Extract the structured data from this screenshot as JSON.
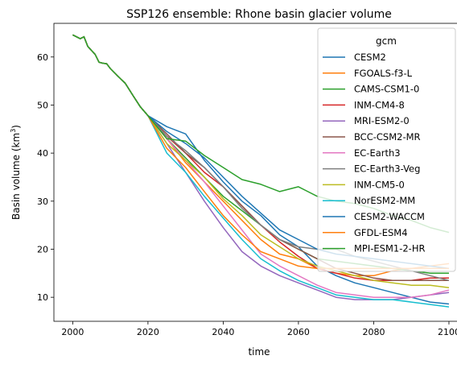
{
  "chart_data": {
    "type": "line",
    "title": "SSP126 ensemble: Rhone basin glacier volume",
    "xlabel": "time",
    "ylabel_main": "Basin volume (km",
    "ylabel_sup": "3",
    "ylabel_close": ")",
    "xlim": [
      1995,
      2103
    ],
    "ylim": [
      5,
      67
    ],
    "xticks": [
      "2000",
      "2020",
      "2040",
      "2060",
      "2080",
      "2100"
    ],
    "xtick_values": [
      2000,
      2020,
      2040,
      2060,
      2080,
      2100
    ],
    "yticks": [
      "10",
      "20",
      "30",
      "40",
      "50",
      "60"
    ],
    "ytick_values": [
      10,
      20,
      30,
      40,
      50,
      60
    ],
    "grid": false,
    "legend_title": "gcm",
    "legend_position": "upper-right",
    "common_history": {
      "x": [
        2000,
        2002,
        2003,
        2004,
        2006,
        2007,
        2008,
        2009,
        2010,
        2012,
        2014,
        2016,
        2018,
        2020
      ],
      "y": [
        64.6,
        63.8,
        64.2,
        62.2,
        60.5,
        58.9,
        58.7,
        58.6,
        57.6,
        56.0,
        54.5,
        52.0,
        49.6,
        47.8
      ]
    },
    "series": [
      {
        "name": "CESM2",
        "color": "#1f77b4",
        "x": [
          2020,
          2025,
          2030,
          2035,
          2040,
          2045,
          2050,
          2055,
          2060,
          2065,
          2070,
          2075,
          2080,
          2085,
          2090,
          2095,
          2100
        ],
        "y": [
          47.8,
          45.5,
          44.0,
          38.5,
          34.0,
          30.0,
          27.0,
          23.0,
          20.5,
          16.5,
          14.5,
          13.0,
          12.0,
          11.0,
          10.0,
          9.0,
          8.6
        ]
      },
      {
        "name": "FGOALS-f3-L",
        "color": "#ff7f0e",
        "x": [
          2020,
          2025,
          2030,
          2035,
          2040,
          2045,
          2050,
          2055,
          2060,
          2065,
          2070,
          2075,
          2080,
          2085,
          2090,
          2095,
          2100
        ],
        "y": [
          47.8,
          43.0,
          38.0,
          34.0,
          30.0,
          26.0,
          22.0,
          19.0,
          18.0,
          16.0,
          15.0,
          14.5,
          14.5,
          15.5,
          16.0,
          16.5,
          17.0
        ]
      },
      {
        "name": "CAMS-CSM1-0",
        "color": "#2ca02c",
        "x": [
          2020,
          2025,
          2030,
          2035,
          2040,
          2045,
          2050,
          2055,
          2060,
          2065,
          2070,
          2075,
          2080,
          2085,
          2090,
          2095,
          2100
        ],
        "y": [
          47.8,
          43.0,
          39.0,
          35.0,
          31.0,
          28.0,
          25.0,
          22.0,
          20.0,
          18.0,
          17.5,
          17.0,
          16.5,
          16.0,
          15.5,
          15.0,
          15.0
        ]
      },
      {
        "name": "INM-CM4-8",
        "color": "#d62728",
        "x": [
          2020,
          2025,
          2030,
          2035,
          2040,
          2045,
          2050,
          2055,
          2060,
          2065,
          2070,
          2075,
          2080,
          2085,
          2090,
          2095,
          2100
        ],
        "y": [
          47.8,
          43.5,
          40.0,
          36.0,
          33.0,
          29.0,
          25.0,
          21.5,
          18.5,
          16.0,
          15.0,
          14.0,
          13.5,
          13.5,
          13.5,
          14.0,
          14.0
        ]
      },
      {
        "name": "MRI-ESM2-0",
        "color": "#9467bd",
        "x": [
          2020,
          2025,
          2030,
          2035,
          2040,
          2045,
          2050,
          2055,
          2060,
          2065,
          2070,
          2075,
          2080,
          2085,
          2090,
          2095,
          2100
        ],
        "y": [
          47.8,
          42.0,
          36.0,
          30.0,
          24.5,
          19.5,
          16.5,
          14.5,
          13.0,
          11.5,
          10.0,
          9.5,
          9.5,
          9.5,
          10.0,
          10.5,
          11.0
        ]
      },
      {
        "name": "BCC-CSM2-MR",
        "color": "#8c564b",
        "x": [
          2020,
          2025,
          2030,
          2035,
          2040,
          2045,
          2050,
          2055,
          2060,
          2065,
          2070,
          2075,
          2080,
          2085,
          2090,
          2095,
          2100
        ],
        "y": [
          47.8,
          44.0,
          40.0,
          37.0,
          33.0,
          29.0,
          25.0,
          22.0,
          20.0,
          18.0,
          16.0,
          15.0,
          14.0,
          13.5,
          13.5,
          13.5,
          13.5
        ]
      },
      {
        "name": "EC-Earth3",
        "color": "#e377c2",
        "x": [
          2020,
          2025,
          2030,
          2035,
          2040,
          2045,
          2050,
          2055,
          2060,
          2065,
          2070,
          2075,
          2080,
          2085,
          2090,
          2095,
          2100
        ],
        "y": [
          47.8,
          43.0,
          38.5,
          34.0,
          29.0,
          24.0,
          19.0,
          16.5,
          14.5,
          12.5,
          11.0,
          10.5,
          10.0,
          10.0,
          10.0,
          10.5,
          11.5
        ]
      },
      {
        "name": "EC-Earth3-Veg",
        "color": "#7f7f7f",
        "x": [
          2020,
          2025,
          2030,
          2035,
          2040,
          2045,
          2050,
          2055,
          2060,
          2065,
          2070,
          2075,
          2080,
          2085,
          2090,
          2095,
          2100
        ],
        "y": [
          47.8,
          43.5,
          40.5,
          37.0,
          33.0,
          28.5,
          25.0,
          22.0,
          20.5,
          20.0,
          20.0,
          18.5,
          17.5,
          16.5,
          15.5,
          14.5,
          13.5
        ]
      },
      {
        "name": "INM-CM5-0",
        "color": "#bcbd22",
        "x": [
          2020,
          2025,
          2030,
          2035,
          2040,
          2045,
          2050,
          2055,
          2060,
          2065,
          2070,
          2075,
          2080,
          2085,
          2090,
          2095,
          2100
        ],
        "y": [
          47.8,
          42.0,
          38.5,
          35.0,
          30.5,
          27.0,
          23.0,
          20.5,
          18.0,
          16.5,
          15.5,
          14.5,
          13.5,
          13.0,
          12.5,
          12.5,
          12.0
        ]
      },
      {
        "name": "NorESM2-MM",
        "color": "#17becf",
        "x": [
          2020,
          2025,
          2030,
          2035,
          2040,
          2045,
          2050,
          2055,
          2060,
          2065,
          2070,
          2075,
          2080,
          2085,
          2090,
          2095,
          2100
        ],
        "y": [
          47.8,
          40.0,
          36.0,
          31.0,
          26.5,
          22.0,
          18.0,
          15.5,
          13.5,
          12.0,
          10.5,
          10.0,
          9.5,
          9.5,
          9.0,
          8.5,
          8.0
        ]
      },
      {
        "name": "CESM2-WACCM",
        "color": "#1f77b4",
        "x": [
          2020,
          2025,
          2030,
          2035,
          2040,
          2045,
          2050,
          2055,
          2060,
          2065,
          2070,
          2075,
          2080,
          2085,
          2090,
          2095,
          2100
        ],
        "y": [
          47.8,
          44.5,
          42.0,
          39.0,
          35.0,
          31.0,
          27.5,
          24.0,
          22.0,
          20.0,
          19.0,
          18.5,
          18.0,
          17.5,
          17.0,
          16.5,
          16.0
        ]
      },
      {
        "name": "GFDL-ESM4",
        "color": "#ff7f0e",
        "x": [
          2020,
          2025,
          2030,
          2035,
          2040,
          2045,
          2050,
          2055,
          2060,
          2065,
          2070,
          2075,
          2080,
          2085,
          2090,
          2095,
          2100
        ],
        "y": [
          47.8,
          41.0,
          37.0,
          32.0,
          27.0,
          23.0,
          19.5,
          18.0,
          16.5,
          16.0,
          16.0,
          16.0,
          16.0,
          16.0,
          16.0,
          16.0,
          16.0
        ]
      },
      {
        "name": "MPI-ESM1-2-HR",
        "color": "#2ca02c",
        "x": [
          2020,
          2025,
          2030,
          2035,
          2040,
          2045,
          2050,
          2055,
          2060,
          2065,
          2070,
          2075,
          2080,
          2085,
          2090,
          2095,
          2100
        ],
        "y": [
          47.8,
          43.0,
          42.5,
          39.5,
          37.0,
          34.5,
          33.5,
          32.0,
          33.0,
          31.0,
          30.0,
          29.5,
          28.5,
          27.0,
          26.0,
          24.5,
          23.5
        ]
      }
    ]
  }
}
